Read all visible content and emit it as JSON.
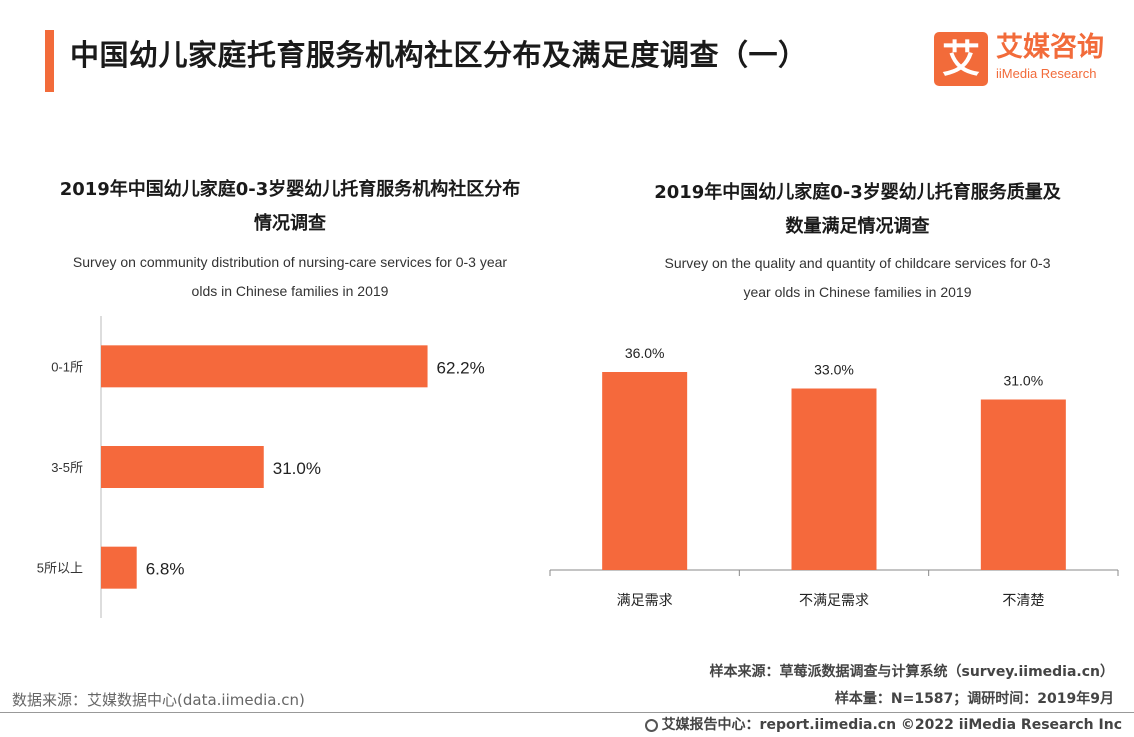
{
  "header": {
    "title": "中国幼儿家庭托育服务机构社区分布及满足度调查（一）",
    "logo_glyph": "艾",
    "logo_cn": "艾媒咨询",
    "logo_en": "iiMedia Research",
    "accent_color": "#f26b3a"
  },
  "left_chart": {
    "title_line1": "2019年中国幼儿家庭0-3岁婴幼儿托育服务机构社区分布",
    "title_line2": "情况调查",
    "subtitle_line1": "Survey on community distribution of nursing-care services for 0-3 year",
    "subtitle_line2": "olds in Chinese families in 2019"
  },
  "right_chart": {
    "title_line1": "2019年中国幼儿家庭0-3岁婴幼儿托育服务质量及",
    "title_line2": "数量满足情况调查",
    "subtitle_line1": "Survey on the quality and quantity of childcare services for 0-3",
    "subtitle_line2": "year olds in Chinese families in 2019"
  },
  "chart_data": [
    {
      "type": "bar",
      "orientation": "horizontal",
      "categories": [
        "0-1所",
        "3-5所",
        "5所以上"
      ],
      "values": [
        62.2,
        31.0,
        6.8
      ],
      "labels": [
        "62.2%",
        "31.0%",
        "6.8%"
      ],
      "xlim": [
        0,
        100
      ],
      "grid": false,
      "color": "#f5693c"
    },
    {
      "type": "bar",
      "orientation": "vertical",
      "categories": [
        "满足需求",
        "不满足需求",
        "不清楚"
      ],
      "values": [
        36.0,
        33.0,
        31.0
      ],
      "labels": [
        "36.0%",
        "33.0%",
        "31.0%"
      ],
      "ylim": [
        0,
        40
      ],
      "grid": false,
      "color": "#f5693c"
    }
  ],
  "sources": {
    "sample_source": "样本来源：草莓派数据调查与计算系统（survey.iimedia.cn）",
    "sample_size": "样本量：N=1587；调研时间：2019年9月",
    "data_source": "数据来源：艾媒数据中心(data.iimedia.cn)",
    "footer": "艾媒报告中心：report.iimedia.cn  ©2022  iiMedia Research  Inc"
  }
}
